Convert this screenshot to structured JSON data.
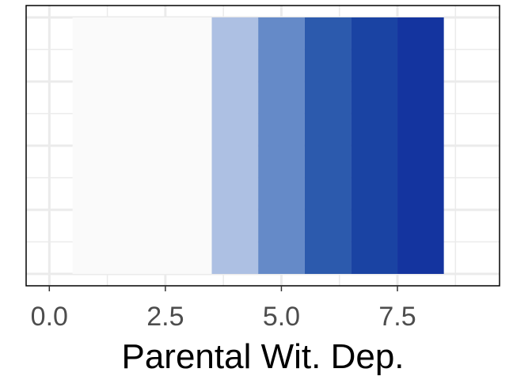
{
  "chart_data": {
    "type": "heatmap",
    "title": "",
    "xlabel": "Parental Wit. Dep.",
    "ylabel": "",
    "xlim": [
      0,
      9
    ],
    "grid": true,
    "legend": "none",
    "x_ticks": [
      {
        "value": 0,
        "label": "0.0"
      },
      {
        "value": 2.5,
        "label": "2.5"
      },
      {
        "value": 5,
        "label": "5.0"
      },
      {
        "value": 7.5,
        "label": "7.5"
      }
    ],
    "tiles": [
      {
        "x_start": 0.5,
        "x_end": 3.5,
        "color": "#fafafa"
      },
      {
        "x_start": 3.5,
        "x_end": 4.5,
        "color": "#adc0e3"
      },
      {
        "x_start": 4.5,
        "x_end": 5.5,
        "color": "#658ac8"
      },
      {
        "x_start": 5.5,
        "x_end": 6.5,
        "color": "#2c5aad"
      },
      {
        "x_start": 6.5,
        "x_end": 7.5,
        "color": "#1a43a3"
      },
      {
        "x_start": 7.5,
        "x_end": 8.5,
        "color": "#14349f"
      }
    ]
  }
}
